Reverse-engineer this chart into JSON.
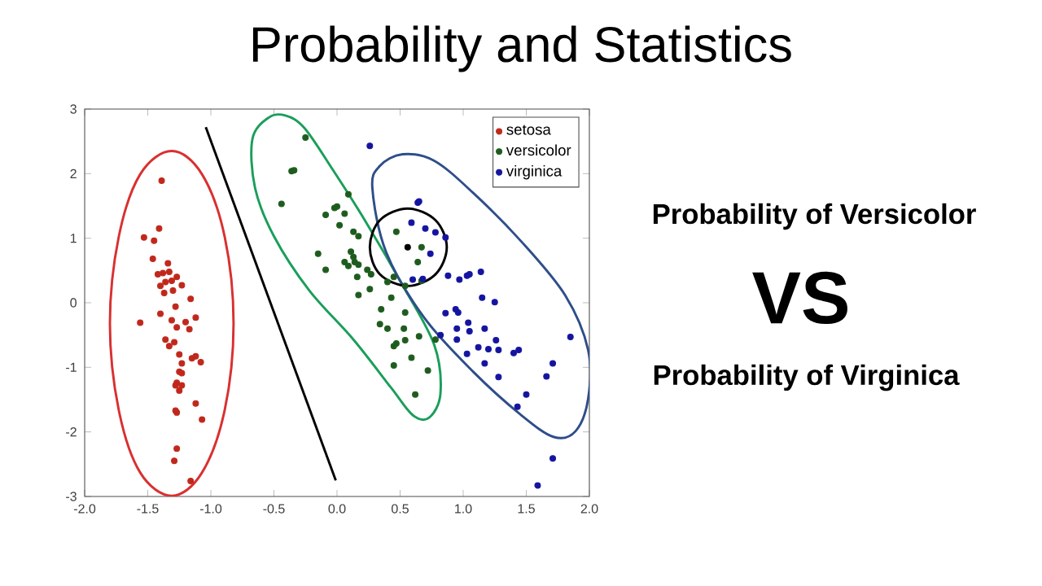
{
  "chart_data": {
    "type": "scatter",
    "title": "Probability and Statistics",
    "annotations": [
      "Probability of Versicolor",
      "VS",
      "Probability of Virginica"
    ],
    "xlim": [
      -2,
      2
    ],
    "ylim": [
      -3,
      3
    ],
    "xticks": [
      {
        "value": -2,
        "label": "-2.0"
      },
      {
        "value": -1.5,
        "label": "-1.5"
      },
      {
        "value": -1,
        "label": "-1.0"
      },
      {
        "value": -0.5,
        "label": "-0.5"
      },
      {
        "value": 0,
        "label": "0.0"
      },
      {
        "value": 0.5,
        "label": "0.5"
      },
      {
        "value": 1,
        "label": "1.0"
      },
      {
        "value": 1.5,
        "label": "1.5"
      },
      {
        "value": 2,
        "label": "2.0"
      }
    ],
    "yticks": [
      -3,
      -2,
      -1,
      0,
      1,
      2,
      3
    ],
    "legend": "top right",
    "grid": false,
    "series": [
      {
        "name": "setosa",
        "marker": "circle",
        "color": "#c0281b",
        "x": [
          -1.39,
          -1.53,
          -1.45,
          -1.41,
          -1.46,
          -1.34,
          -1.38,
          -1.33,
          -1.42,
          -1.27,
          -1.31,
          -1.36,
          -1.23,
          -1.4,
          -1.3,
          -1.37,
          -1.16,
          -1.28,
          -1.4,
          -1.56,
          -1.31,
          -1.2,
          -1.27,
          -1.12,
          -1.17,
          -1.36,
          -1.29,
          -1.33,
          -1.25,
          -1.15,
          -1.08,
          -1.12,
          -1.23,
          -1.25,
          -1.23,
          -1.27,
          -1.23,
          -1.28,
          -1.25,
          -1.27,
          -1.28,
          -1.12,
          -1.07,
          -1.27,
          -1.29,
          -1.16
        ],
        "values": [
          1.89,
          1.01,
          0.96,
          1.15,
          0.68,
          0.61,
          0.46,
          0.48,
          0.44,
          0.4,
          0.34,
          0.32,
          0.27,
          0.26,
          0.19,
          0.15,
          0.06,
          -0.06,
          -0.17,
          -0.31,
          -0.27,
          -0.3,
          -0.38,
          -0.23,
          -0.41,
          -0.57,
          -0.61,
          -0.67,
          -0.8,
          -0.86,
          -0.92,
          -0.83,
          -0.94,
          -1.07,
          -1.09,
          -1.24,
          -1.28,
          -1.28,
          -1.36,
          -1.7,
          -1.67,
          -1.56,
          -1.81,
          -2.26,
          -2.45,
          -2.76
        ]
      },
      {
        "name": "versicolor",
        "marker": "circle",
        "color": "#1e5c1e",
        "x": [
          -0.25,
          -0.36,
          -0.34,
          -0.44,
          0.09,
          -0.02,
          0.0,
          -0.09,
          0.06,
          0.02,
          0.13,
          0.17,
          -0.15,
          -0.09,
          0.11,
          0.13,
          0.06,
          0.14,
          0.09,
          0.17,
          0.16,
          0.24,
          0.27,
          0.17,
          0.26,
          0.4,
          0.45,
          0.43,
          0.54,
          0.35,
          0.54,
          0.4,
          0.34,
          0.53,
          0.45,
          0.47,
          0.54,
          0.65,
          0.45,
          0.59,
          0.72,
          0.62,
          0.67,
          0.64,
          0.47,
          0.67,
          0.78
        ],
        "values": [
          2.56,
          2.04,
          2.05,
          1.53,
          1.68,
          1.47,
          1.49,
          1.36,
          1.38,
          1.2,
          1.1,
          1.03,
          0.76,
          0.51,
          0.79,
          0.71,
          0.63,
          0.63,
          0.57,
          0.59,
          0.4,
          0.51,
          0.44,
          0.12,
          0.21,
          0.32,
          0.4,
          0.08,
          0.26,
          -0.1,
          -0.15,
          -0.4,
          -0.33,
          -0.4,
          -0.67,
          -0.63,
          -0.58,
          -0.52,
          -0.97,
          -0.85,
          -1.05,
          -1.42,
          0.86,
          0.63,
          1.1,
          0.34,
          -0.57
        ]
      },
      {
        "name": "virginica",
        "marker": "circle",
        "color": "#1414a0",
        "x": [
          0.26,
          0.64,
          0.65,
          0.59,
          0.7,
          0.78,
          0.86,
          0.74,
          0.6,
          0.68,
          0.88,
          0.97,
          1.03,
          1.05,
          1.14,
          1.15,
          1.25,
          0.86,
          0.94,
          0.96,
          0.95,
          1.04,
          1.05,
          0.82,
          0.95,
          1.17,
          1.12,
          1.2,
          1.26,
          1.28,
          1.03,
          1.4,
          1.44,
          1.85,
          1.17,
          1.28,
          1.71,
          1.66,
          1.5,
          1.43,
          1.71,
          1.59
        ],
        "values": [
          2.43,
          1.55,
          1.57,
          1.24,
          1.15,
          1.09,
          1.01,
          0.76,
          0.36,
          0.37,
          0.42,
          0.36,
          0.42,
          0.44,
          0.48,
          0.08,
          0.01,
          -0.16,
          -0.1,
          -0.15,
          -0.4,
          -0.31,
          -0.44,
          -0.5,
          -0.57,
          -0.4,
          -0.69,
          -0.72,
          -0.58,
          -0.73,
          -0.79,
          -0.78,
          -0.73,
          -0.53,
          -0.94,
          -1.15,
          -0.94,
          -1.14,
          -1.42,
          -1.61,
          -2.41,
          -2.83
        ]
      },
      {
        "type": "line",
        "marker": "none",
        "color": "#000000",
        "x": [
          -1.04,
          -0.01
        ],
        "values": [
          2.72,
          -2.75
        ]
      },
      {
        "marker": "circle",
        "color": "#000000",
        "x": [
          0.56
        ],
        "values": [
          0.86
        ]
      }
    ]
  }
}
